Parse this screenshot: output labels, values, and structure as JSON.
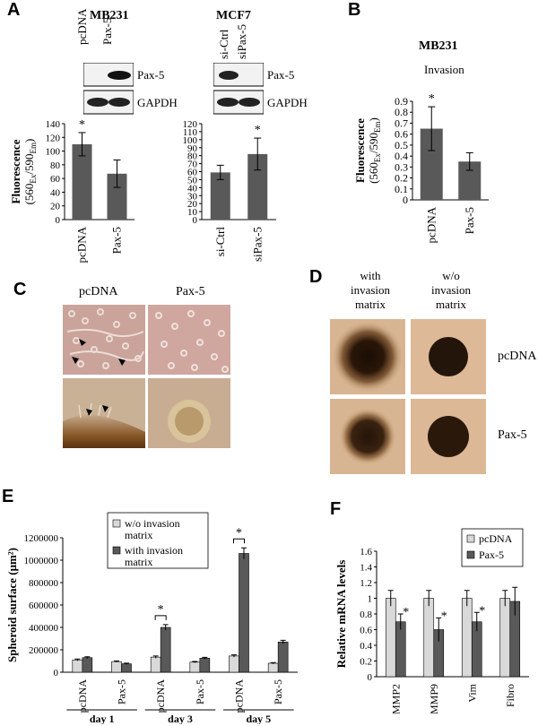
{
  "panels": {
    "A": {
      "letter": "A",
      "mb231": {
        "title": "MB231",
        "lanes": [
          "pcDNA",
          "Pax-5"
        ],
        "blots": [
          "Pax-5",
          "GAPDH"
        ]
      },
      "mcf7": {
        "title": "MCF7",
        "lanes": [
          "si-Ctrl",
          "siPax-5"
        ],
        "blots": [
          "Pax-5",
          "GAPDH"
        ]
      }
    },
    "B": {
      "letter": "B",
      "title": "MB231",
      "subtitle": "Invasion"
    },
    "C": {
      "letter": "C",
      "cols": [
        "pcDNA",
        "Pax-5"
      ]
    },
    "D": {
      "letter": "D",
      "cols": [
        "with\ninvasion\nmatrix",
        "w/o\ninvasion\nmatrix"
      ],
      "rows": [
        "pcDNA",
        "Pax-5"
      ]
    },
    "E": {
      "letter": "E",
      "groups": [
        "day 1",
        "day 3",
        "day 5"
      ]
    },
    "F": {
      "letter": "F"
    }
  },
  "chart_data": [
    {
      "id": "A-MB231",
      "type": "bar",
      "categories": [
        "pcDNA",
        "Pax-5"
      ],
      "values": [
        110,
        67
      ],
      "errors": [
        17,
        20
      ],
      "ylim": [
        0,
        140
      ],
      "yticks": [
        0,
        20,
        40,
        60,
        80,
        100,
        120,
        140
      ],
      "ylabel_main": "Fluorescence",
      "ylabel_unit": "(560Ex/590Em)",
      "significance": [
        "*",
        ""
      ],
      "color": "#595959"
    },
    {
      "id": "A-MCF7",
      "type": "bar",
      "categories": [
        "si-Ctrl",
        "siPax-5"
      ],
      "values": [
        59,
        82
      ],
      "errors": [
        9,
        20
      ],
      "ylim": [
        0,
        120
      ],
      "yticks": [
        0,
        10,
        20,
        30,
        40,
        50,
        60,
        70,
        80,
        90,
        100,
        110,
        120
      ],
      "significance": [
        "",
        "*"
      ],
      "color": "#595959"
    },
    {
      "id": "B",
      "type": "bar",
      "categories": [
        "pcDNA",
        "Pax-5"
      ],
      "values": [
        0.65,
        0.35
      ],
      "errors": [
        0.2,
        0.08
      ],
      "ylim": [
        0,
        0.9
      ],
      "yticks": [
        0,
        0.1,
        0.2,
        0.3,
        0.4,
        0.5,
        0.6,
        0.7,
        0.8,
        0.9
      ],
      "ylabel_main": "Fluorescence",
      "ylabel_unit": "(560Ex/590Em)",
      "significance": [
        "*",
        ""
      ],
      "color": "#595959"
    },
    {
      "id": "E",
      "type": "bar",
      "categories": [
        "pcDNA",
        "Pax-5",
        "pcDNA",
        "Pax-5",
        "pcDNA",
        "Pax-5"
      ],
      "groups": [
        "day 1",
        "day 3",
        "day 5"
      ],
      "series": [
        {
          "name": "w/o invasion matrix",
          "values": [
            110000,
            95000,
            135000,
            90000,
            145000,
            80000
          ],
          "color": "#d9d9d9"
        },
        {
          "name": "with invasion matrix",
          "values": [
            130000,
            75000,
            400000,
            125000,
            1060000,
            270000
          ],
          "color": "#595959"
        }
      ],
      "errors": [
        [
          8000,
          6000,
          10000,
          6000,
          10000,
          6000
        ],
        [
          8000,
          6000,
          25000,
          8000,
          50000,
          15000
        ]
      ],
      "ylim": [
        0,
        1200000
      ],
      "yticks": [
        "0",
        "200000",
        "400000",
        "600000",
        "800000",
        "1000000",
        "1200000"
      ],
      "ylabel": "Spheroid surface  (μm²)",
      "significance_pairs": [
        2,
        4
      ],
      "legend": "top-left"
    },
    {
      "id": "F",
      "type": "bar",
      "categories": [
        "MMP2",
        "MMP9",
        "Vim",
        "Fibro"
      ],
      "series": [
        {
          "name": "pcDNA",
          "values": [
            1.0,
            1.0,
            1.0,
            1.0
          ],
          "color": "#d9d9d9"
        },
        {
          "name": "Pax-5",
          "values": [
            0.7,
            0.6,
            0.7,
            0.96
          ],
          "color": "#595959"
        }
      ],
      "errors": [
        [
          0.1,
          0.1,
          0.1,
          0.1
        ],
        [
          0.1,
          0.15,
          0.12,
          0.18
        ]
      ],
      "ylim": [
        0,
        1.6
      ],
      "yticks": [
        "0",
        "0.2",
        "0.4",
        "0.6",
        "0.8",
        "1",
        "1.2",
        "1.4",
        "1.6"
      ],
      "ylabel": "Relative mRNA levels",
      "significance": [
        "*",
        "*",
        "*",
        ""
      ],
      "legend": "top-right"
    }
  ]
}
